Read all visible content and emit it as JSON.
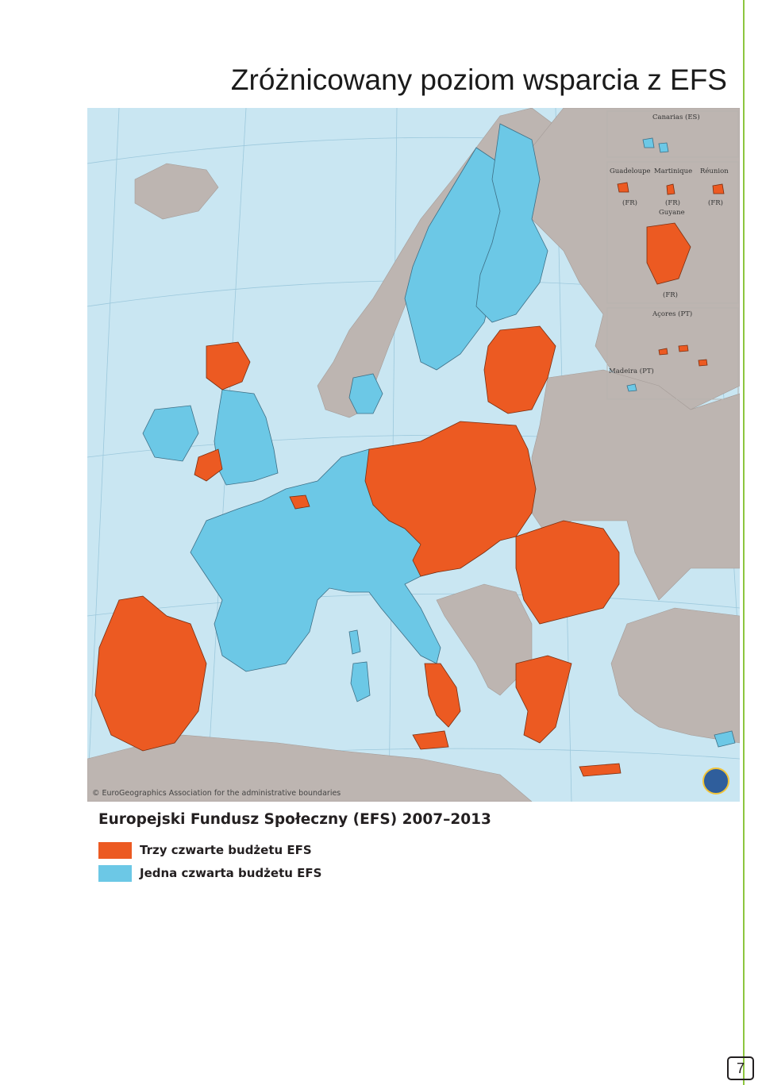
{
  "page": {
    "title": "Zróżnicowany poziom wsparcia z EFS",
    "page_number": "7"
  },
  "colors": {
    "three_quarters": "#ec5a22",
    "one_quarter": "#6cc8e6",
    "non_eu": "#bdb5b1",
    "sea": "#c9e6f2",
    "accent_rule": "#8dc63f"
  },
  "map": {
    "credit": "© EuroGeographics Association for the administrative boundaries",
    "insets": {
      "canarias": "Canarias (ES)",
      "guadeloupe": "Guadeloupe",
      "martinique": "Martinique",
      "reunion": "Réunion",
      "fr_1": "(FR)",
      "fr_2": "(FR)",
      "fr_3": "(FR)",
      "guyane": "Guyane",
      "fr_guyane": "(FR)",
      "acores": "Açores (PT)",
      "madeira": "Madeira (PT)"
    }
  },
  "legend": {
    "heading": "Europejski Fundusz Społeczny (EFS) 2007–2013",
    "items": [
      {
        "label": "Trzy czwarte budżetu EFS",
        "color": "#ec5a22"
      },
      {
        "label": "Jedna czwarta budżetu EFS",
        "color": "#6cc8e6"
      }
    ]
  }
}
